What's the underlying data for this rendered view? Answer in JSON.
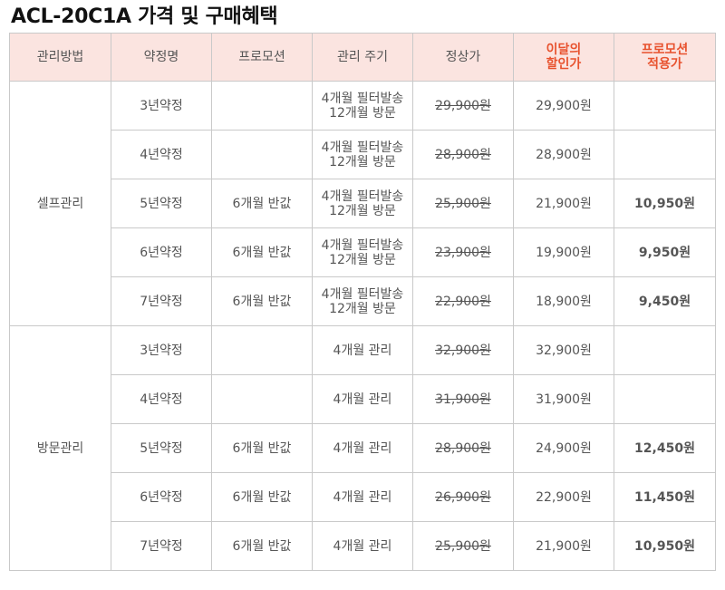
{
  "title": "ACL-20C1A 가격 및 구매혜택",
  "colors": {
    "header_bg": "#fbe4e0",
    "accent": "#e8522e",
    "border": "#c9c9c9"
  },
  "headers": {
    "method": "관리방법",
    "contract": "약정명",
    "promotion": "프로모션",
    "cycle": "관리 주기",
    "regular": "정상가",
    "discount_line1": "이달의",
    "discount_line2": "할인가",
    "promo_line1": "프로모션",
    "promo_line2": "적용가"
  },
  "groups": [
    {
      "method": "셀프관리",
      "rows": [
        {
          "contract": "3년약정",
          "promotion": "",
          "cycle_line1": "4개월 필터발송",
          "cycle_line2": "12개월 방문",
          "regular": "29,900원",
          "discount": "29,900원",
          "promo": ""
        },
        {
          "contract": "4년약정",
          "promotion": "",
          "cycle_line1": "4개월 필터발송",
          "cycle_line2": "12개월 방문",
          "regular": "28,900원",
          "discount": "28,900원",
          "promo": ""
        },
        {
          "contract": "5년약정",
          "promotion": "6개월 반값",
          "cycle_line1": "4개월 필터발송",
          "cycle_line2": "12개월 방문",
          "regular": "25,900원",
          "discount": "21,900원",
          "promo": "10,950원"
        },
        {
          "contract": "6년약정",
          "promotion": "6개월 반값",
          "cycle_line1": "4개월 필터발송",
          "cycle_line2": "12개월 방문",
          "regular": "23,900원",
          "discount": "19,900원",
          "promo": "9,950원"
        },
        {
          "contract": "7년약정",
          "promotion": "6개월 반값",
          "cycle_line1": "4개월 필터발송",
          "cycle_line2": "12개월 방문",
          "regular": "22,900원",
          "discount": "18,900원",
          "promo": "9,450원"
        }
      ]
    },
    {
      "method": "방문관리",
      "rows": [
        {
          "contract": "3년약정",
          "promotion": "",
          "cycle_line1": "4개월 관리",
          "regular": "32,900원",
          "discount": "32,900원",
          "promo": ""
        },
        {
          "contract": "4년약정",
          "promotion": "",
          "cycle_line1": "4개월 관리",
          "regular": "31,900원",
          "discount": "31,900원",
          "promo": ""
        },
        {
          "contract": "5년약정",
          "promotion": "6개월 반값",
          "cycle_line1": "4개월 관리",
          "regular": "28,900원",
          "discount": "24,900원",
          "promo": "12,450원"
        },
        {
          "contract": "6년약정",
          "promotion": "6개월 반값",
          "cycle_line1": "4개월 관리",
          "regular": "26,900원",
          "discount": "22,900원",
          "promo": "11,450원"
        },
        {
          "contract": "7년약정",
          "promotion": "6개월 반값",
          "cycle_line1": "4개월 관리",
          "regular": "25,900원",
          "discount": "21,900원",
          "promo": "10,950원"
        }
      ]
    }
  ]
}
